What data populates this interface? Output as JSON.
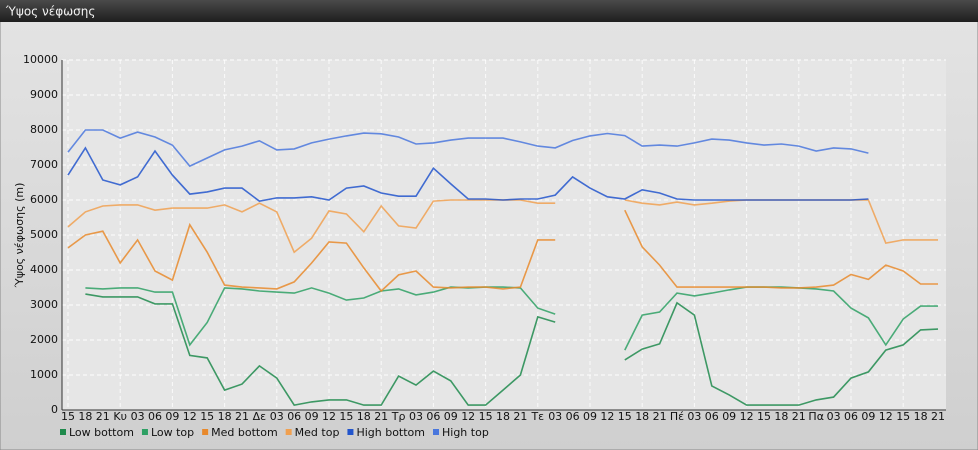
{
  "chart_data": {
    "type": "line",
    "title": "Ύψος νέφωσης",
    "y_label": "Ύψος νέφωσης (m)",
    "categories": [
      "15",
      "18",
      "21",
      "Κυ",
      "03",
      "06",
      "09",
      "12",
      "15",
      "18",
      "21",
      "Δε",
      "03",
      "06",
      "09",
      "12",
      "15",
      "18",
      "21",
      "Τρ",
      "03",
      "06",
      "09",
      "12",
      "15",
      "18",
      "21",
      "Τε",
      "03",
      "06",
      "09",
      "12",
      "15",
      "18",
      "21",
      "Πέ",
      "03",
      "06",
      "09",
      "12",
      "15",
      "18",
      "21",
      "Πα",
      "03",
      "06",
      "09",
      "12",
      "15",
      "18",
      "21"
    ],
    "ylim": [
      0,
      10000
    ],
    "yticks": [
      0,
      1000,
      2000,
      3000,
      4000,
      5000,
      6000,
      7000,
      8000,
      9000,
      10000
    ],
    "grid": true,
    "series": [
      {
        "name": "Low bottom",
        "color": "#1f8a4c",
        "values": [
          null,
          3310,
          3230,
          3230,
          3230,
          3030,
          3030,
          1560,
          1490,
          570,
          740,
          1260,
          910,
          140,
          230,
          290,
          290,
          140,
          140,
          970,
          710,
          1110,
          830,
          140,
          140,
          570,
          1000,
          2660,
          2510,
          null,
          null,
          null,
          1430,
          1740,
          1890,
          3060,
          2710,
          690,
          430,
          140,
          140,
          140,
          140,
          290,
          370,
          910,
          1090,
          1710,
          1860,
          2290,
          2310
        ]
      },
      {
        "name": "Low top",
        "color": "#2ea064",
        "values": [
          null,
          3490,
          3460,
          3490,
          3490,
          3370,
          3370,
          1860,
          2500,
          3490,
          3460,
          3400,
          3370,
          3340,
          3490,
          3340,
          3140,
          3200,
          3400,
          3460,
          3290,
          3370,
          3510,
          3490,
          3510,
          3510,
          3490,
          2910,
          2740,
          null,
          null,
          null,
          1710,
          2710,
          2800,
          3340,
          3260,
          3340,
          3430,
          3510,
          3510,
          3510,
          3490,
          3460,
          3400,
          2910,
          2630,
          1860,
          2600,
          2970,
          2970
        ]
      },
      {
        "name": "Med bottom",
        "color": "#e8892c",
        "values": [
          4630,
          5000,
          5110,
          4200,
          4860,
          3970,
          3710,
          5290,
          4510,
          3570,
          3510,
          3490,
          3460,
          3660,
          4200,
          4800,
          4770,
          4060,
          3400,
          3860,
          3970,
          3510,
          3490,
          3510,
          3510,
          3460,
          3510,
          4860,
          4860,
          null,
          null,
          null,
          5710,
          4660,
          4140,
          3510,
          3510,
          3510,
          3510,
          3510,
          3510,
          3490,
          3490,
          3510,
          3570,
          3870,
          3730,
          4140,
          3970,
          3600,
          3600
        ]
      },
      {
        "name": "Med top",
        "color": "#f0a050",
        "values": [
          5230,
          5660,
          5830,
          5860,
          5860,
          5710,
          5770,
          5770,
          5770,
          5860,
          5660,
          5910,
          5660,
          4510,
          4910,
          5690,
          5600,
          5090,
          5830,
          5260,
          5200,
          5970,
          6000,
          6000,
          6000,
          6000,
          6000,
          5910,
          5910,
          null,
          null,
          null,
          6000,
          5910,
          5860,
          5940,
          5860,
          5910,
          5970,
          6000,
          6000,
          6000,
          6000,
          6000,
          6000,
          6000,
          6000,
          4770,
          4860,
          4860,
          4860
        ]
      },
      {
        "name": "High bottom",
        "color": "#2255cc",
        "values": [
          6710,
          7490,
          6570,
          6430,
          6660,
          7400,
          6710,
          6170,
          6230,
          6340,
          6340,
          5970,
          6060,
          6060,
          6090,
          6000,
          6340,
          6400,
          6200,
          6110,
          6110,
          6910,
          6460,
          6030,
          6030,
          6000,
          6030,
          6030,
          6140,
          6660,
          6340,
          6090,
          6030,
          6290,
          6200,
          6030,
          6000,
          6000,
          6000,
          6000,
          6000,
          6000,
          6000,
          6000,
          6000,
          6000,
          6030,
          null,
          null,
          null,
          null
        ]
      },
      {
        "name": "High top",
        "color": "#4a77dd",
        "values": [
          7370,
          8000,
          8000,
          7770,
          7940,
          7800,
          7570,
          6970,
          7200,
          7430,
          7540,
          7690,
          7430,
          7460,
          7630,
          7740,
          7830,
          7910,
          7890,
          7800,
          7600,
          7630,
          7710,
          7770,
          7770,
          7770,
          7660,
          7540,
          7490,
          7700,
          7830,
          7900,
          7840,
          7540,
          7570,
          7540,
          7630,
          7740,
          7710,
          7630,
          7570,
          7600,
          7540,
          7400,
          7490,
          7460,
          7340,
          null,
          null,
          null,
          null
        ]
      }
    ]
  }
}
